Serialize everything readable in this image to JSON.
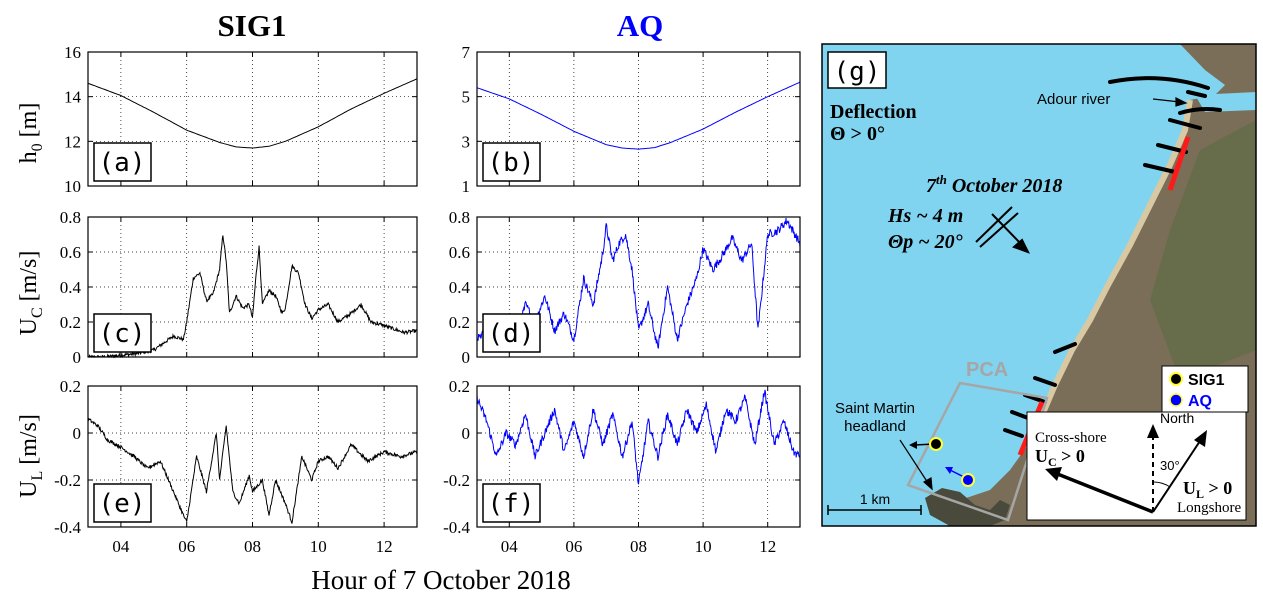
{
  "columns": {
    "left_title": "SIG1",
    "right_title": "AQ"
  },
  "xlabel": "Hour of 7 October 2018",
  "x_ticks": [
    "04",
    "06",
    "08",
    "10",
    "12"
  ],
  "ylabels": {
    "h0": [
      "h",
      "0",
      " [m]"
    ],
    "uc": [
      "U",
      "C",
      " [m/s]"
    ],
    "ul": [
      "U",
      "L",
      " [m/s]"
    ]
  },
  "colors": {
    "sig1": "#000000",
    "aq": "#0000ff",
    "sea": "#7fd3f0",
    "land": "#7f7058",
    "red": "#ff0000",
    "pca": "#a6a6a6"
  },
  "chart_data": [
    {
      "id": "a",
      "type": "line",
      "panel_label": "(a)",
      "series": [
        {
          "name": "SIG1",
          "x": [
            3,
            4,
            5,
            6,
            7,
            7.5,
            8,
            8.5,
            9,
            10,
            11,
            12,
            13
          ],
          "y": [
            14.6,
            14.05,
            13.3,
            12.5,
            11.95,
            11.75,
            11.7,
            11.78,
            12.0,
            12.65,
            13.45,
            14.15,
            14.8
          ]
        }
      ],
      "xlim": [
        3,
        13
      ],
      "ylim": [
        10,
        16
      ],
      "yticks": [
        "10",
        "12",
        "14",
        "16"
      ],
      "yticks_val": [
        10,
        12,
        14,
        16
      ]
    },
    {
      "id": "b",
      "type": "line",
      "panel_label": "(b)",
      "series": [
        {
          "name": "AQ",
          "x": [
            3,
            4,
            5,
            6,
            7,
            7.5,
            8,
            8.5,
            9,
            10,
            11,
            12,
            13
          ],
          "y": [
            5.4,
            4.9,
            4.2,
            3.45,
            2.85,
            2.7,
            2.65,
            2.72,
            2.95,
            3.55,
            4.3,
            5.0,
            5.65
          ]
        }
      ],
      "xlim": [
        3,
        13
      ],
      "ylim": [
        1,
        7
      ],
      "yticks": [
        "1",
        "3",
        "5",
        "7"
      ],
      "yticks_val": [
        1,
        3,
        5,
        7
      ]
    },
    {
      "id": "c",
      "type": "line",
      "panel_label": "(c)",
      "series": [
        {
          "name": "SIG1",
          "x": [
            3,
            3.5,
            4,
            4.5,
            5,
            5.3,
            5.6,
            5.9,
            6,
            6.2,
            6.4,
            6.6,
            6.8,
            7,
            7.1,
            7.2,
            7.3,
            7.5,
            7.7,
            7.9,
            8,
            8.1,
            8.2,
            8.3,
            8.5,
            8.7,
            8.9,
            9,
            9.2,
            9.4,
            9.6,
            9.8,
            10,
            10.3,
            10.6,
            11,
            11.3,
            11.6,
            12,
            12.3,
            12.6,
            13
          ],
          "y": [
            0.0,
            0.0,
            0.01,
            0.02,
            0.04,
            0.08,
            0.12,
            0.1,
            0.2,
            0.45,
            0.48,
            0.32,
            0.36,
            0.5,
            0.7,
            0.55,
            0.25,
            0.35,
            0.28,
            0.3,
            0.22,
            0.45,
            0.63,
            0.3,
            0.38,
            0.35,
            0.25,
            0.28,
            0.52,
            0.48,
            0.3,
            0.22,
            0.27,
            0.3,
            0.2,
            0.25,
            0.3,
            0.2,
            0.18,
            0.16,
            0.14,
            0.15
          ]
        }
      ],
      "xlim": [
        3,
        13
      ],
      "ylim": [
        0,
        0.8
      ],
      "yticks": [
        "0",
        "0.2",
        "0.4",
        "0.6",
        "0.8"
      ],
      "yticks_val": [
        0,
        0.2,
        0.4,
        0.6,
        0.8
      ]
    },
    {
      "id": "d",
      "type": "line",
      "panel_label": "(d)",
      "series": [
        {
          "name": "AQ",
          "x": [
            3,
            3.3,
            3.6,
            3.9,
            4.2,
            4.5,
            4.8,
            5.1,
            5.4,
            5.7,
            6,
            6.3,
            6.6,
            6.9,
            7,
            7.2,
            7.4,
            7.6,
            7.8,
            8,
            8.3,
            8.6,
            8.9,
            9.2,
            9.5,
            9.8,
            10,
            10.3,
            10.6,
            10.9,
            11.2,
            11.5,
            11.7,
            12,
            12.3,
            12.6,
            13
          ],
          "y": [
            0.1,
            0.15,
            0.05,
            0.2,
            0.1,
            0.3,
            0.2,
            0.35,
            0.15,
            0.25,
            0.1,
            0.45,
            0.3,
            0.6,
            0.75,
            0.55,
            0.65,
            0.7,
            0.5,
            0.15,
            0.3,
            0.05,
            0.4,
            0.1,
            0.3,
            0.45,
            0.62,
            0.5,
            0.58,
            0.68,
            0.55,
            0.65,
            0.15,
            0.7,
            0.72,
            0.78,
            0.65
          ]
        }
      ],
      "xlim": [
        3,
        13
      ],
      "ylim": [
        0,
        0.8
      ],
      "yticks": [
        "0",
        "0.2",
        "0.4",
        "0.6",
        "0.8"
      ],
      "yticks_val": [
        0,
        0.2,
        0.4,
        0.6,
        0.8
      ]
    },
    {
      "id": "e",
      "type": "line",
      "panel_label": "(e)",
      "series": [
        {
          "name": "SIG1",
          "x": [
            3,
            3.3,
            3.6,
            4,
            4.4,
            4.8,
            5.2,
            5.6,
            5.9,
            6,
            6.3,
            6.6,
            6.9,
            7,
            7.2,
            7.4,
            7.6,
            7.9,
            8,
            8.3,
            8.5,
            8.7,
            9,
            9.2,
            9.5,
            9.8,
            10,
            10.3,
            10.6,
            11,
            11.5,
            12,
            12.5,
            13
          ],
          "y": [
            0.06,
            0.03,
            -0.03,
            -0.06,
            -0.1,
            -0.15,
            -0.12,
            -0.25,
            -0.35,
            -0.38,
            -0.1,
            -0.25,
            0.0,
            -0.2,
            0.03,
            -0.25,
            -0.3,
            -0.18,
            -0.25,
            -0.2,
            -0.35,
            -0.2,
            -0.3,
            -0.38,
            -0.1,
            -0.2,
            -0.12,
            -0.1,
            -0.15,
            -0.05,
            -0.12,
            -0.08,
            -0.1,
            -0.08
          ]
        }
      ],
      "xlim": [
        3,
        13
      ],
      "ylim": [
        -0.4,
        0.2
      ],
      "yticks": [
        "-0.4",
        "-0.2",
        "0",
        "0.2"
      ],
      "yticks_val": [
        -0.4,
        -0.2,
        0,
        0.2
      ]
    },
    {
      "id": "f",
      "type": "line",
      "panel_label": "(f)",
      "series": [
        {
          "name": "AQ",
          "x": [
            3,
            3.3,
            3.6,
            3.9,
            4.2,
            4.5,
            4.8,
            5.1,
            5.4,
            5.7,
            6,
            6.3,
            6.6,
            6.9,
            7.2,
            7.5,
            7.8,
            8,
            8.3,
            8.6,
            8.9,
            9.2,
            9.5,
            9.8,
            10.1,
            10.4,
            10.7,
            11,
            11.3,
            11.6,
            11.9,
            12.2,
            12.5,
            12.8,
            13
          ],
          "y": [
            0.15,
            0.05,
            -0.1,
            0.0,
            -0.05,
            0.08,
            -0.1,
            0.0,
            0.1,
            -0.08,
            0.05,
            -0.1,
            0.1,
            -0.05,
            0.08,
            -0.1,
            0.05,
            -0.22,
            0.05,
            -0.1,
            0.08,
            -0.05,
            0.1,
            0.0,
            0.12,
            -0.08,
            0.1,
            0.05,
            0.15,
            -0.05,
            0.18,
            -0.05,
            0.05,
            -0.08,
            -0.1
          ]
        }
      ],
      "xlim": [
        3,
        13
      ],
      "ylim": [
        -0.4,
        0.2
      ],
      "yticks": [
        "-0.4",
        "-0.2",
        "0",
        "0.2"
      ],
      "yticks_val": [
        -0.4,
        -0.2,
        0,
        0.2
      ]
    }
  ],
  "map": {
    "panel_label": "(g)",
    "deflection_title": "Deflection",
    "deflection_cond": "Θ > 0°",
    "date_main": "7",
    "date_sup": "th",
    "date_rest": " October 2018",
    "hs": "Hs ~ 4 m",
    "thp": "Θp ~ 20°",
    "adour": "Adour river",
    "pca": "PCA",
    "saint_martin_1": "Saint Martin",
    "saint_martin_2": "headland",
    "scale": "1 km",
    "legend_sig1": "SIG1",
    "legend_aq": "AQ",
    "north": "North",
    "angle": "30°",
    "cross_shore": "Cross-shore",
    "uc_pos": [
      "U",
      "C",
      " > 0"
    ],
    "ul_pos": [
      "U",
      "L",
      " > 0"
    ],
    "longshore": "Longshore"
  }
}
